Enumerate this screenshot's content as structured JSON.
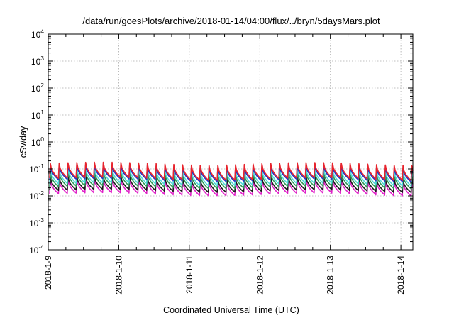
{
  "chart_data": {
    "type": "line",
    "title": "/data/run/goesPlots/archive/2018-01-14/04:00/flux/../bryn/5daysMars.plot",
    "xlabel": "Coordinated Universal Time (UTC)",
    "ylabel": "cSv/day",
    "y_scale": "log",
    "ylim": [
      0.0001,
      10000
    ],
    "y_ticks": [
      {
        "base": "10",
        "exp": "4"
      },
      {
        "base": "10",
        "exp": "3"
      },
      {
        "base": "10",
        "exp": "2"
      },
      {
        "base": "10",
        "exp": "1"
      },
      {
        "base": "10",
        "exp": "0"
      },
      {
        "base": "10",
        "exp": "-1"
      },
      {
        "base": "10",
        "exp": "-2"
      },
      {
        "base": "10",
        "exp": "-3"
      },
      {
        "base": "10",
        "exp": "-4"
      }
    ],
    "x_ticks": [
      "2018-1-9",
      "2018-1-10",
      "2018-1-11",
      "2018-1-12",
      "2018-1-13",
      "2018-1-14"
    ],
    "xlim_days": [
      0,
      5.17
    ],
    "grid": true,
    "legend": "none",
    "sawtooth_period_hours": 3,
    "series": [
      {
        "color": "#e8242d",
        "peak": 0.16,
        "trough": 0.045
      },
      {
        "color": "#2334c8",
        "peak": 0.13,
        "trough": 0.04
      },
      {
        "color": "#4fd8d8",
        "peak": 0.1,
        "trough": 0.028
      },
      {
        "color": "#2d9a57",
        "peak": 0.075,
        "trough": 0.022
      },
      {
        "color": "#1a1a1a",
        "peak": 0.05,
        "trough": 0.016
      },
      {
        "color": "#e020c8",
        "peak": 0.04,
        "trough": 0.012
      }
    ]
  }
}
